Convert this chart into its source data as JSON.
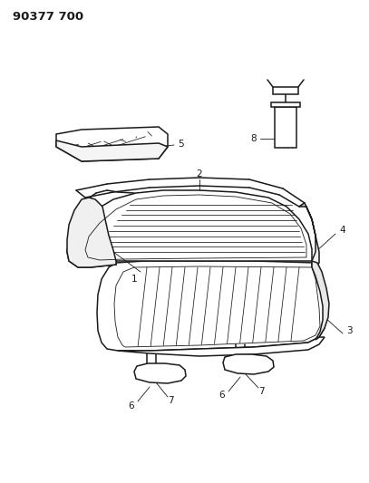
{
  "title": "90377 700",
  "bg_color": "#ffffff",
  "line_color": "#1a1a1a",
  "title_fontsize": 9.5,
  "label_fontsize": 7.5,
  "fig_width": 4.07,
  "fig_height": 5.33,
  "dpi": 100
}
